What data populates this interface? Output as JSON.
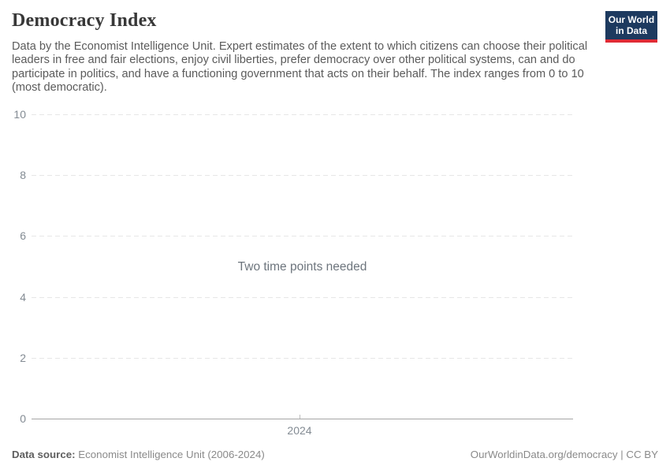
{
  "header": {
    "title": "Democracy Index",
    "subtitle": "Data by the Economist Intelligence Unit. Expert estimates of the extent to which citizens can choose their political leaders in free and fair elections, enjoy civil liberties, prefer democracy over other political systems, can and do participate in politics, and have a functioning government that acts on their behalf. The index ranges from 0 to 10 (most democratic).",
    "logo": {
      "line1": "Our World",
      "line2": "in Data",
      "bg_color": "#1d3a5f",
      "stripe_color": "#e02b35"
    }
  },
  "chart_data": {
    "type": "line",
    "title": "Democracy Index",
    "series": [],
    "x": [],
    "empty_state_message": "Two time points needed",
    "x_ticks": [
      "2024"
    ],
    "y_ticks": [
      0,
      2,
      4,
      6,
      8,
      10
    ],
    "ylim": [
      0,
      10
    ],
    "xlabel": "",
    "ylabel": "",
    "legend": "none",
    "grid": "horizontal-dashed",
    "gridline_color": "#e7e7e7",
    "axis_line_color": "#a5a5a5",
    "tick_label_color": "#838b93"
  },
  "footer": {
    "datasource_label": "Data source:",
    "datasource_value": " Economist Intelligence Unit (2006-2024)",
    "credit": "OurWorldinData.org/democracy | CC BY"
  }
}
